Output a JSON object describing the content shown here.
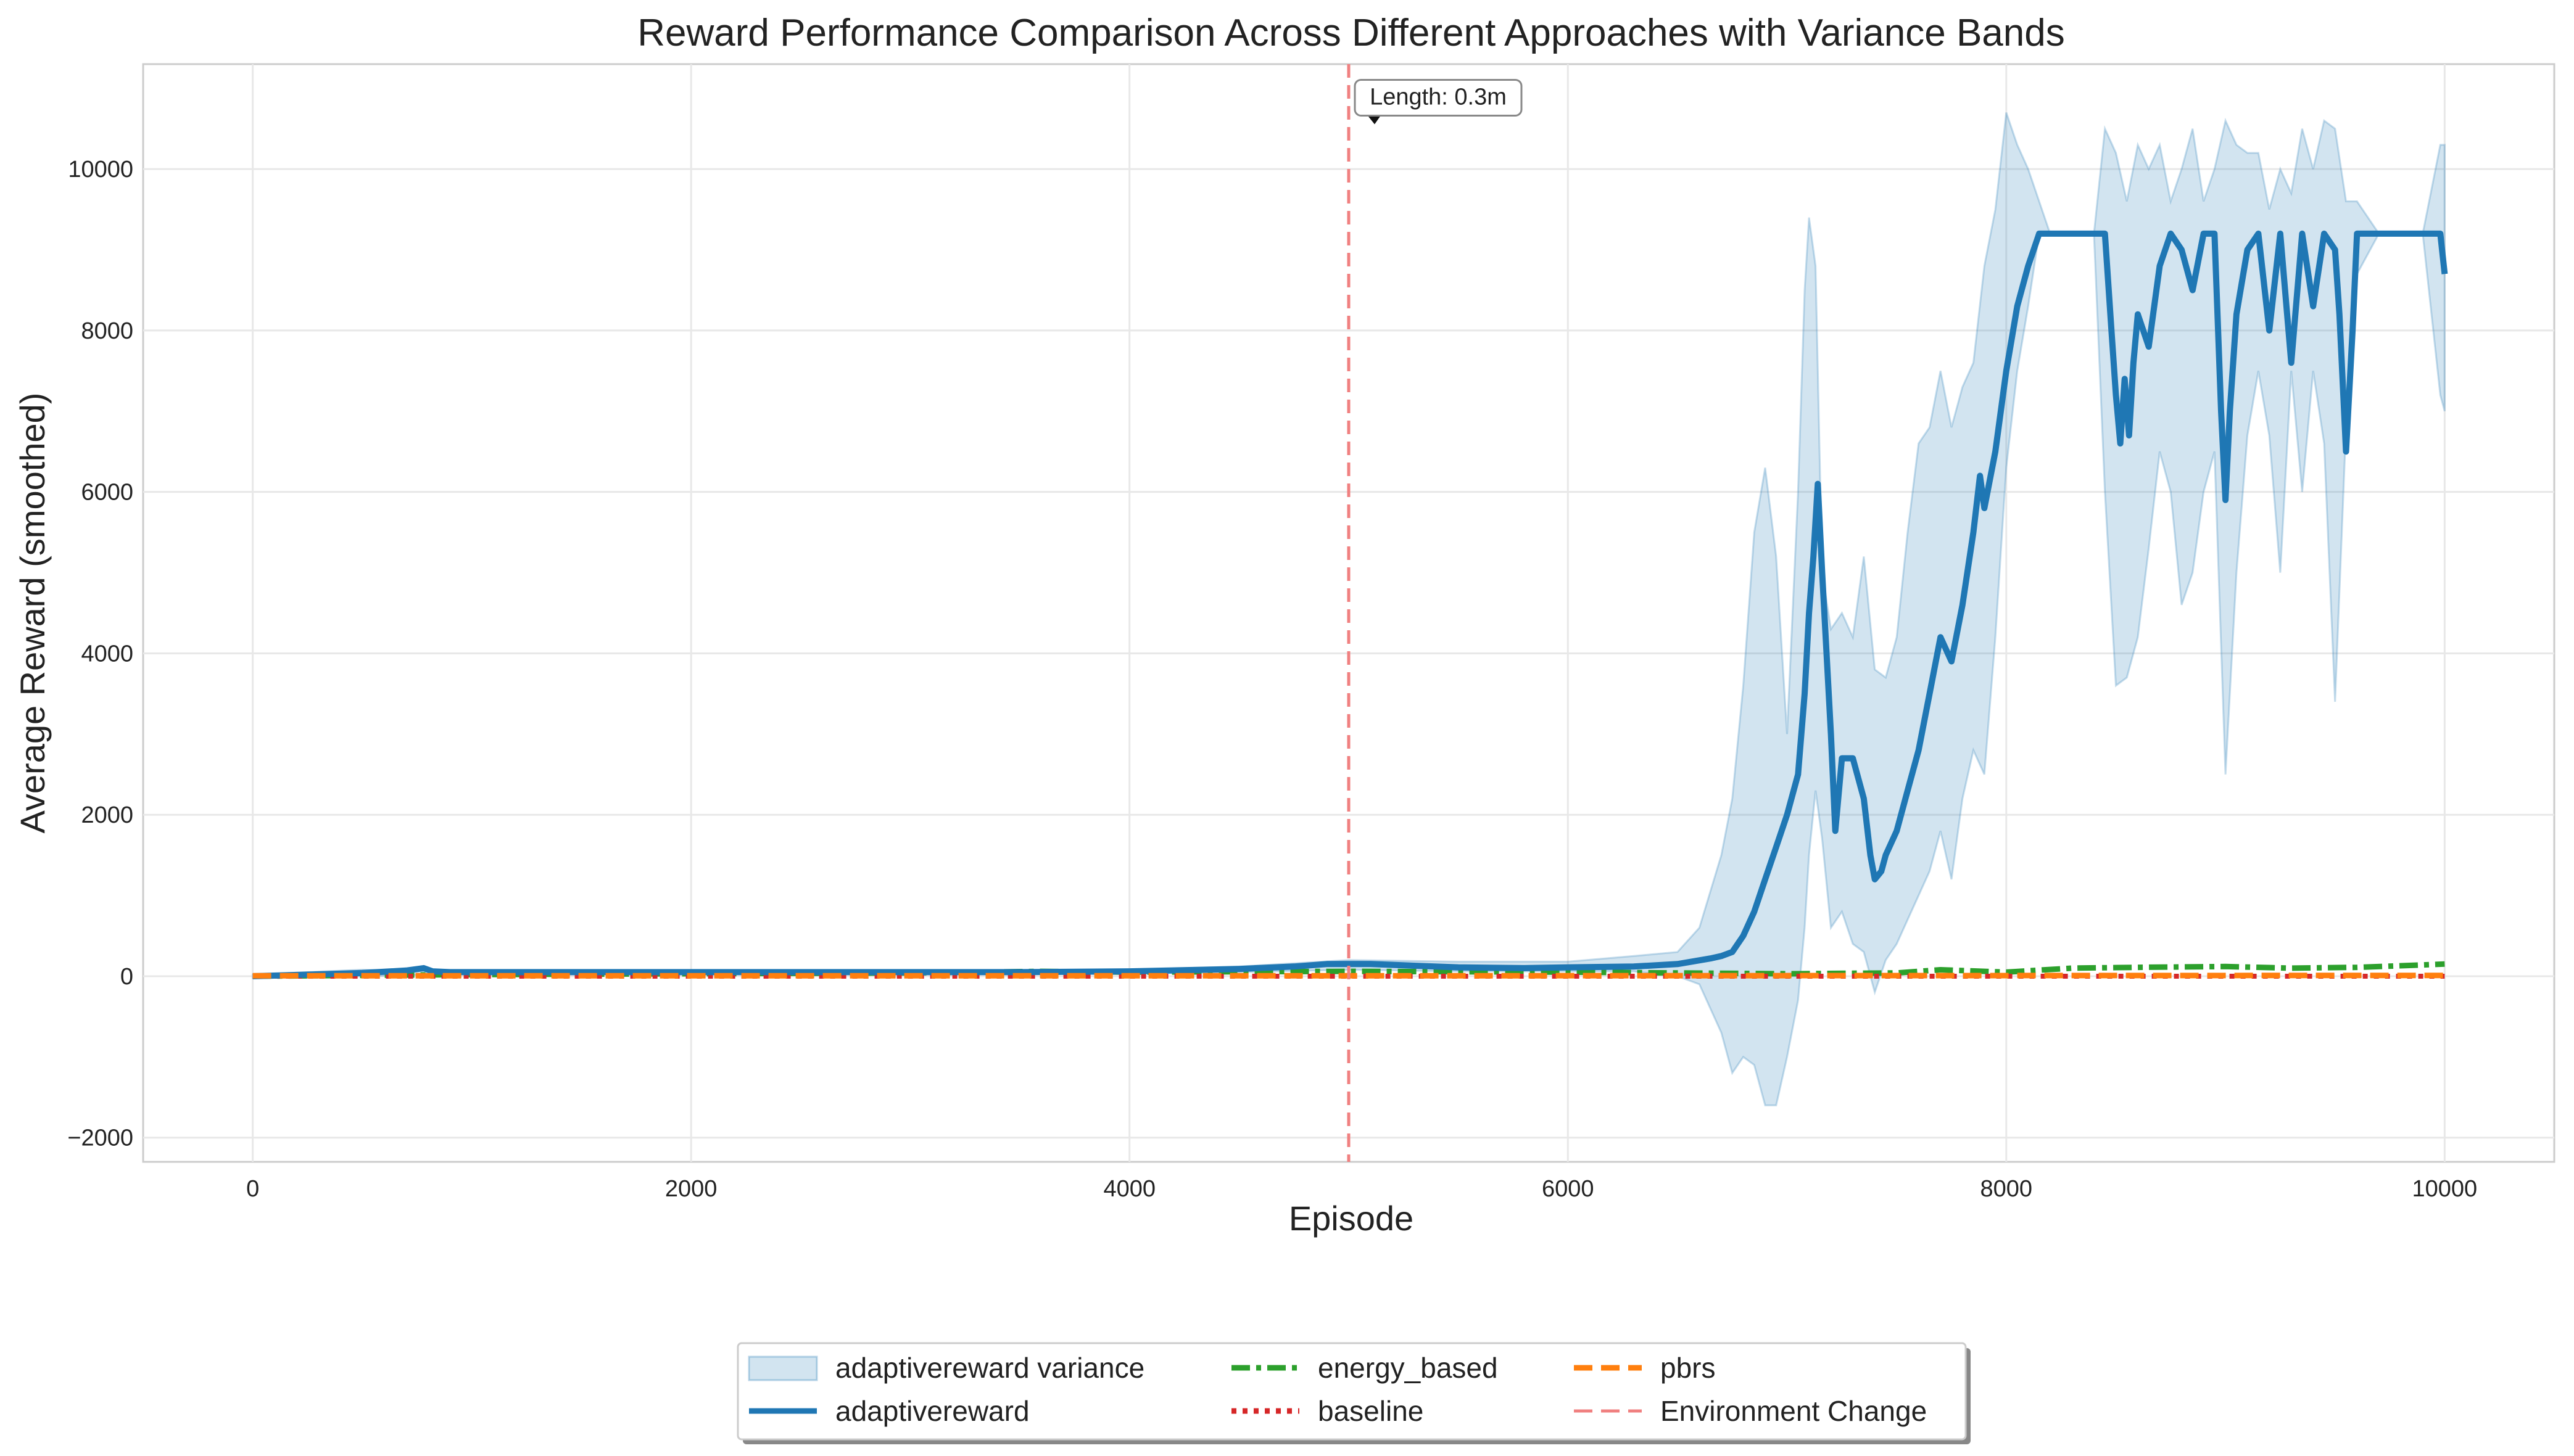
{
  "chart_data": {
    "type": "line",
    "title": "Reward Performance Comparison Across Different Approaches with Variance Bands",
    "xlabel": "Episode",
    "ylabel": "Average Reward (smoothed)",
    "xlim": [
      -500,
      10500
    ],
    "ylim": [
      -2300,
      11300
    ],
    "x_ticks": [
      0,
      2000,
      4000,
      6000,
      8000,
      10000
    ],
    "y_ticks": [
      -2000,
      0,
      2000,
      4000,
      6000,
      8000,
      10000
    ],
    "x_tick_labels": [
      "0",
      "2000",
      "4000",
      "6000",
      "8000",
      "10000"
    ],
    "y_tick_labels": [
      "−2000",
      "0",
      "2000",
      "4000",
      "6000",
      "8000",
      "10000"
    ],
    "grid": true,
    "legend_position": "bottom-center",
    "series": [
      {
        "name": "adaptivereward",
        "color": "#1f77b4",
        "style": "solid",
        "x": [
          0,
          250,
          500,
          700,
          780,
          820,
          900,
          1500,
          2500,
          3500,
          4000,
          4500,
          4750,
          4900,
          5100,
          5300,
          5500,
          5800,
          6000,
          6300,
          6500,
          6650,
          6700,
          6750,
          6800,
          6850,
          6900,
          6950,
          7000,
          7050,
          7080,
          7100,
          7120,
          7140,
          7160,
          7200,
          7220,
          7250,
          7300,
          7350,
          7380,
          7400,
          7430,
          7450,
          7500,
          7550,
          7600,
          7650,
          7700,
          7750,
          7800,
          7850,
          7880,
          7900,
          7950,
          8000,
          8050,
          8100,
          8150,
          8200,
          8300,
          8400,
          8450,
          8480,
          8500,
          8520,
          8540,
          8560,
          8580,
          8600,
          8650,
          8700,
          8750,
          8800,
          8850,
          8900,
          8950,
          8980,
          9000,
          9020,
          9050,
          9100,
          9150,
          9200,
          9250,
          9300,
          9350,
          9400,
          9450,
          9500,
          9520,
          9550,
          9580,
          9600,
          9700,
          9800,
          9900,
          9980,
          10000
        ],
        "y": [
          0,
          20,
          40,
          70,
          100,
          60,
          50,
          50,
          50,
          50,
          60,
          90,
          120,
          150,
          150,
          130,
          110,
          100,
          110,
          120,
          150,
          220,
          250,
          300,
          500,
          800,
          1200,
          1600,
          2000,
          2500,
          3500,
          4500,
          5200,
          6100,
          5000,
          3000,
          1800,
          2700,
          2700,
          2200,
          1500,
          1200,
          1300,
          1500,
          1800,
          2300,
          2800,
          3500,
          4200,
          3900,
          4600,
          5500,
          6200,
          5800,
          6500,
          7500,
          8300,
          8800,
          9200,
          9200,
          9200,
          9200,
          9200,
          8000,
          7200,
          6600,
          7400,
          6700,
          7600,
          8200,
          7800,
          8800,
          9200,
          9000,
          8500,
          9200,
          9200,
          7000,
          5900,
          7000,
          8200,
          9000,
          9200,
          8000,
          9200,
          7600,
          9200,
          8300,
          9200,
          9000,
          8200,
          6500,
          8000,
          9200,
          9200,
          9200,
          9200,
          9200,
          8700
        ]
      },
      {
        "name": "energy_based",
        "color": "#2ca02c",
        "style": "dashdot",
        "x": [
          0,
          1000,
          2000,
          3000,
          3600,
          4000,
          5000,
          6000,
          6500,
          7000,
          7500,
          7700,
          8000,
          8300,
          8600,
          9000,
          9300,
          9600,
          9800,
          10000
        ],
        "y": [
          0,
          20,
          30,
          40,
          60,
          50,
          60,
          50,
          40,
          30,
          40,
          80,
          50,
          100,
          110,
          120,
          100,
          110,
          130,
          150
        ]
      },
      {
        "name": "baseline",
        "color": "#d62728",
        "style": "dotted",
        "x": [
          0,
          5000,
          10000
        ],
        "y": [
          0,
          0,
          0
        ]
      },
      {
        "name": "pbrs",
        "color": "#ff7f0e",
        "style": "dashed",
        "x": [
          0,
          5000,
          10000
        ],
        "y": [
          5,
          5,
          10
        ]
      }
    ],
    "bands": [
      {
        "name": "adaptivereward variance",
        "color": "#1f77b4",
        "x": [
          0,
          500,
          1000,
          2000,
          3000,
          4000,
          4500,
          5000,
          5500,
          6000,
          6300,
          6500,
          6600,
          6700,
          6750,
          6800,
          6850,
          6900,
          6950,
          7000,
          7050,
          7080,
          7100,
          7130,
          7160,
          7200,
          7250,
          7300,
          7350,
          7400,
          7450,
          7500,
          7550,
          7600,
          7650,
          7700,
          7750,
          7800,
          7850,
          7900,
          7950,
          8000,
          8050,
          8100,
          8150,
          8200,
          8300,
          8400,
          8450,
          8500,
          8550,
          8600,
          8650,
          8700,
          8750,
          8800,
          8850,
          8900,
          8950,
          9000,
          9050,
          9100,
          9150,
          9200,
          9250,
          9300,
          9350,
          9400,
          9450,
          9500,
          9550,
          9600,
          9700,
          9800,
          9900,
          9980,
          10000
        ],
        "upper": [
          20,
          80,
          60,
          60,
          60,
          80,
          120,
          200,
          180,
          180,
          250,
          300,
          600,
          1500,
          2200,
          3600,
          5500,
          6300,
          5200,
          3000,
          6000,
          8500,
          9400,
          8800,
          5000,
          4300,
          4500,
          4200,
          5200,
          3800,
          3700,
          4200,
          5500,
          6600,
          6800,
          7500,
          6800,
          7300,
          7600,
          8800,
          9500,
          10700,
          10300,
          10000,
          9600,
          9200,
          9200,
          9200,
          10500,
          10200,
          9600,
          10300,
          10000,
          10300,
          9600,
          10000,
          10500,
          9600,
          10000,
          10600,
          10300,
          10200,
          10200,
          9500,
          10000,
          9700,
          10500,
          10000,
          10600,
          10500,
          9600,
          9600,
          9200,
          9200,
          9200,
          10300,
          10300
        ],
        "lower": [
          -20,
          0,
          30,
          30,
          30,
          30,
          50,
          80,
          60,
          60,
          60,
          0,
          -100,
          -700,
          -1200,
          -1000,
          -1100,
          -1600,
          -1600,
          -1000,
          -300,
          600,
          1500,
          2300,
          1700,
          600,
          800,
          400,
          300,
          -200,
          200,
          400,
          700,
          1000,
          1300,
          1800,
          1200,
          2200,
          2800,
          2500,
          4200,
          6300,
          7500,
          8300,
          9200,
          9200,
          9200,
          9200,
          6000,
          3600,
          3700,
          4200,
          5300,
          6500,
          6000,
          4600,
          5000,
          6000,
          6500,
          2500,
          5000,
          6700,
          7500,
          6700,
          5000,
          7500,
          6000,
          7500,
          6600,
          3400,
          6800,
          8700,
          9200,
          9200,
          9200,
          7200,
          7000
        ]
      }
    ],
    "annotations": [
      {
        "text": "Length: 0.3m",
        "x": 5000,
        "y": 10800
      }
    ],
    "reference_lines": [
      {
        "name": "Environment Change",
        "orientation": "vertical",
        "x": 5000,
        "color": "#f08080",
        "style": "dashed"
      }
    ],
    "legend_entries": [
      {
        "label": "adaptivereward variance",
        "kind": "band",
        "color": "#1f77b4"
      },
      {
        "label": "adaptivereward",
        "kind": "line",
        "color": "#1f77b4",
        "style": "solid"
      },
      {
        "label": "energy_based",
        "kind": "line",
        "color": "#2ca02c",
        "style": "dashdot"
      },
      {
        "label": "baseline",
        "kind": "line",
        "color": "#d62728",
        "style": "dotted"
      },
      {
        "label": "pbrs",
        "kind": "line",
        "color": "#ff7f0e",
        "style": "dashed"
      },
      {
        "label": "Environment Change",
        "kind": "line",
        "color": "#f08080",
        "style": "dashed"
      }
    ]
  }
}
